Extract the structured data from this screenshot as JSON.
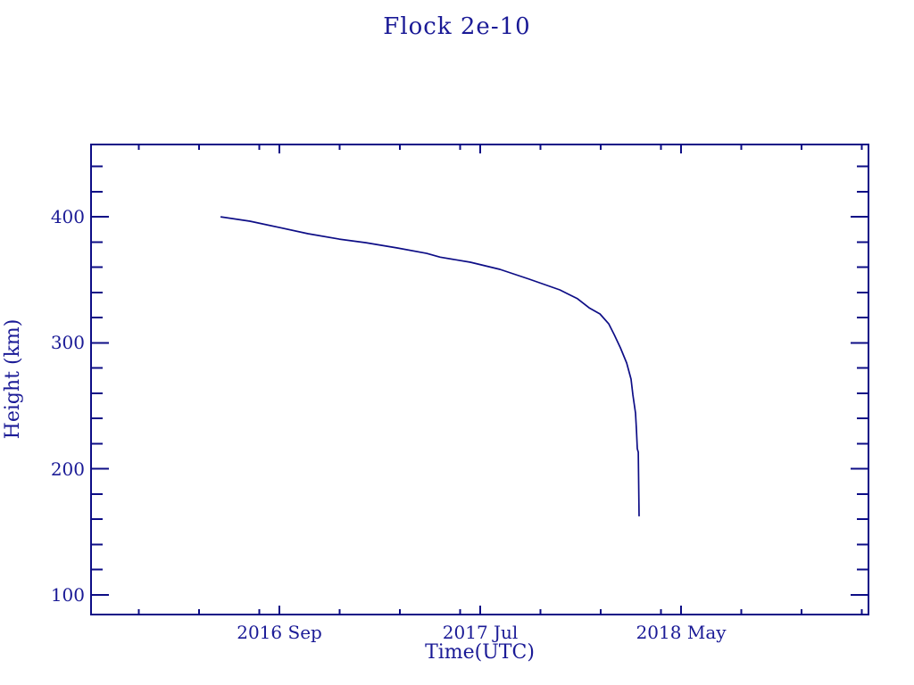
{
  "colors": {
    "ink": "#1a1a96",
    "frame": "#0d0d86",
    "line": "#0d0d86",
    "background": "#ffffff"
  },
  "chart_data": {
    "type": "line",
    "title": "Flock 2e-10",
    "grid": "off",
    "legend": "none",
    "x_axis": {
      "label": "Time(UTC)",
      "unit": "calendar months offset from 2016-09-01",
      "range_m": [
        -9.38,
        29.33
      ],
      "major_ticks": [
        {
          "m": 0,
          "label": "2016 Sep"
        },
        {
          "m": 10,
          "label": "2017 Jul"
        },
        {
          "m": 20,
          "label": "2018 May"
        }
      ],
      "minor_ticks_m": [
        -7,
        -4,
        -1,
        3,
        6,
        9,
        13,
        16,
        19,
        23,
        26,
        29
      ]
    },
    "y_axis": {
      "label": "Height (km)",
      "range_km": [
        84.4,
        457.4
      ],
      "major_ticks": [
        {
          "km": 100,
          "label": "100"
        },
        {
          "km": 200,
          "label": "200"
        },
        {
          "km": 300,
          "label": "300"
        },
        {
          "km": 400,
          "label": "400"
        }
      ],
      "minor_step_km": 20
    },
    "series": [
      {
        "name": "Flock 2e-10 orbital height",
        "color": "#0d0d86",
        "points": [
          {
            "date": "2016-06-03",
            "m": -2.93,
            "km": 400.0
          },
          {
            "date": "2016-07-17",
            "m": -1.47,
            "km": 396.5
          },
          {
            "date": "2016-09-01",
            "m": 0.0,
            "km": 391.5
          },
          {
            "date": "2016-10-14",
            "m": 1.42,
            "km": 386.6
          },
          {
            "date": "2016-11-30",
            "m": 2.98,
            "km": 382.3
          },
          {
            "date": "2017-01-10",
            "m": 4.31,
            "km": 379.5
          },
          {
            "date": "2017-02-27",
            "m": 5.87,
            "km": 375.3
          },
          {
            "date": "2017-04-11",
            "m": 7.33,
            "km": 371.0
          },
          {
            "date": "2017-05-01",
            "m": 8.0,
            "km": 368.0
          },
          {
            "date": "2017-06-16",
            "m": 9.51,
            "km": 364.0
          },
          {
            "date": "2017-07-31",
            "m": 10.98,
            "km": 358.3
          },
          {
            "date": "2017-09-14",
            "m": 12.44,
            "km": 350.5
          },
          {
            "date": "2017-10-30",
            "m": 13.96,
            "km": 342.0
          },
          {
            "date": "2017-11-26",
            "m": 14.84,
            "km": 335.0
          },
          {
            "date": "2017-12-14",
            "m": 15.42,
            "km": 327.8
          },
          {
            "date": "2017-12-30",
            "m": 15.96,
            "km": 322.9
          },
          {
            "date": "2018-01-13",
            "m": 16.4,
            "km": 315.0
          },
          {
            "date": "2018-01-21",
            "m": 16.67,
            "km": 306.6
          },
          {
            "date": "2018-01-31",
            "m": 16.98,
            "km": 296.0
          },
          {
            "date": "2018-02-09",
            "m": 17.29,
            "km": 284.0
          },
          {
            "date": "2018-02-16",
            "m": 17.51,
            "km": 271.2
          },
          {
            "date": "2018-02-19",
            "m": 17.6,
            "km": 258.5
          },
          {
            "date": "2018-02-23",
            "m": 17.73,
            "km": 244.3
          },
          {
            "date": "2018-02-24",
            "m": 17.78,
            "km": 230.2
          },
          {
            "date": "2018-02-25",
            "m": 17.82,
            "km": 216.0
          },
          {
            "date": "2018-02-27",
            "m": 17.87,
            "km": 213.2
          },
          {
            "date": "2018-02-28",
            "m": 17.91,
            "km": 162.3
          }
        ]
      }
    ]
  }
}
